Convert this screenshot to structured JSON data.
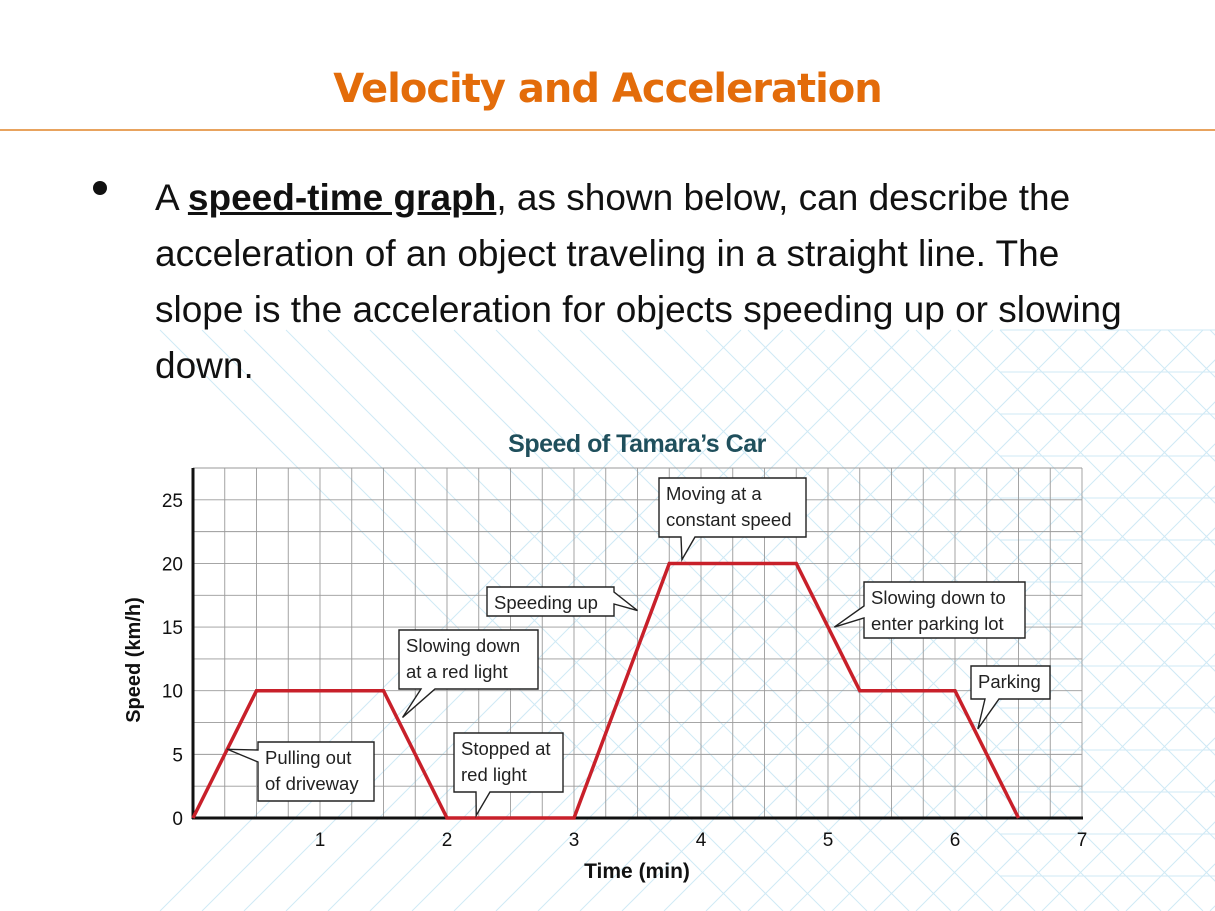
{
  "slide": {
    "title": "Velocity and Acceleration",
    "title_color": "#E36C0A",
    "rule_color": "#E8A35E",
    "bullet_prefix": "A ",
    "bullet_term": "speed-time graph",
    "bullet_rest": ", as shown below, can describe the acceleration of an object traveling in a straight line. The slope is the acceleration for objects speeding up or slowing down."
  },
  "chart_data": {
    "type": "line",
    "title": "Speed of Tamara’s Car",
    "title_color": "#1F4F5C",
    "line_color": "#C8202A",
    "xlabel": "Time (min)",
    "ylabel": "Speed (km/h)",
    "xlim": [
      0,
      7
    ],
    "ylim": [
      0,
      27.5
    ],
    "grid": true,
    "x_ticks": [
      1,
      2,
      3,
      4,
      5,
      6,
      7
    ],
    "y_ticks": [
      0,
      5,
      10,
      15,
      20,
      25
    ],
    "series": [
      {
        "name": "Speed",
        "x": [
          0,
          0.5,
          1.5,
          2,
          3,
          3.75,
          4.75,
          5.25,
          6,
          6.5
        ],
        "y": [
          0,
          10,
          10,
          0,
          0,
          20,
          20,
          10,
          10,
          0
        ]
      }
    ],
    "annotations": [
      {
        "lines": [
          "Pulling out",
          "of driveway"
        ]
      },
      {
        "lines": [
          "Slowing down",
          "at a red light"
        ]
      },
      {
        "lines": [
          "Stopped at",
          "red light"
        ]
      },
      {
        "lines": [
          "Speeding up"
        ]
      },
      {
        "lines": [
          "Moving at a",
          "constant speed"
        ]
      },
      {
        "lines": [
          "Slowing down to",
          "enter parking lot"
        ]
      },
      {
        "lines": [
          "Parking"
        ]
      }
    ]
  }
}
